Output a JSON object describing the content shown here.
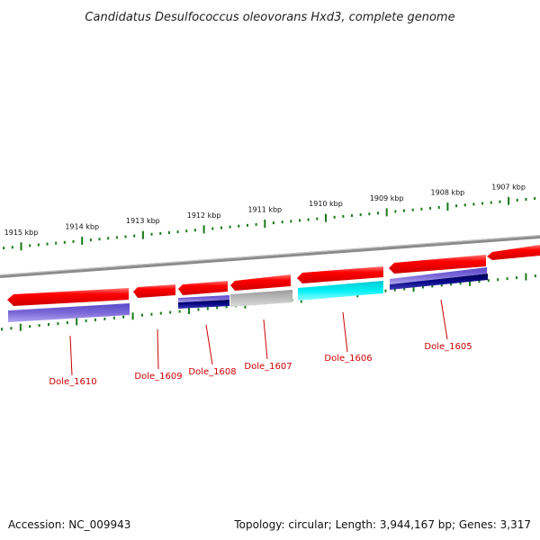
{
  "title": "Candidatus Desulfococcus oleovorans Hxd3, complete genome",
  "footer": {
    "accession": "Accession: NC_009943",
    "summary": "Topology: circular; Length: 3,944,167 bp; Genes: 3,317"
  },
  "colors": {
    "backbone": "#8c8c8c",
    "tick": "#1a7a1a",
    "forward_gene": "#ff0000",
    "label": "#cc0000",
    "track_light_purple": "#7b68d8",
    "track_dark_navy": "#0a0a6e",
    "track_gray": "#b4b4b4",
    "track_cyan": "#00e8ee"
  },
  "ticks": [
    {
      "kbp": 1915,
      "label": "1915 kbp"
    },
    {
      "kbp": 1914,
      "label": "1914 kbp"
    },
    {
      "kbp": 1913,
      "label": "1913 kbp"
    },
    {
      "kbp": 1912,
      "label": "1912 kbp"
    },
    {
      "kbp": 1911,
      "label": "1911 kbp"
    },
    {
      "kbp": 1910,
      "label": "1910 kbp"
    },
    {
      "kbp": 1909,
      "label": "1909 kbp"
    },
    {
      "kbp": 1908,
      "label": "1908 kbp"
    },
    {
      "kbp": 1907,
      "label": "1907 kbp"
    }
  ],
  "genes": [
    {
      "id": "Dole_1610",
      "strand": "forward"
    },
    {
      "id": "Dole_1609",
      "strand": "forward"
    },
    {
      "id": "Dole_1608",
      "strand": "forward"
    },
    {
      "id": "Dole_1607",
      "strand": "forward"
    },
    {
      "id": "Dole_1606",
      "strand": "forward"
    },
    {
      "id": "Dole_1605",
      "strand": "forward"
    }
  ],
  "annotation_tracks": [
    {
      "gene": "Dole_1610",
      "color": "light_purple"
    },
    {
      "gene": "Dole_1608",
      "color": "light_purple_over_navy"
    },
    {
      "gene": "Dole_1607",
      "color": "gray"
    },
    {
      "gene": "Dole_1606",
      "color": "cyan"
    },
    {
      "gene": "Dole_1605",
      "color": "light_purple_over_navy"
    }
  ]
}
